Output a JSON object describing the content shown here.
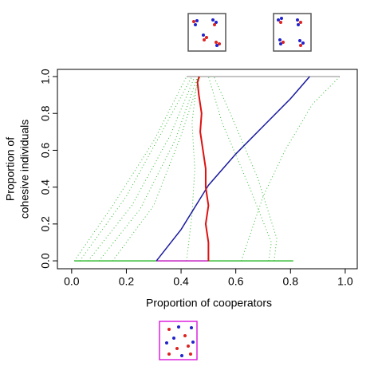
{
  "chart_data": {
    "type": "line",
    "xlabel": "Proportion of cooperators",
    "ylabel": [
      "Proportion of",
      "cohesive individuals"
    ],
    "xlim": [
      -0.052,
      1.044
    ],
    "ylim": [
      -0.043,
      1.039
    ],
    "xticks": [
      {
        "value": 0,
        "label": "0.0"
      },
      0.2,
      0.4,
      0.6,
      0.8,
      {
        "value": 1,
        "label": "1.0"
      }
    ],
    "yticks": [
      {
        "value": 0,
        "label": "0.0"
      },
      0.2,
      0.4,
      0.6,
      0.8,
      {
        "value": 1,
        "label": "1.0"
      }
    ],
    "series": [
      {
        "color": "#33bb33",
        "linestyle": "dotted",
        "x": [
          0.01,
          0.15,
          0.3,
          0.42
        ],
        "values": [
          0,
          0.3,
          0.65,
          1
        ]
      },
      {
        "color": "#33bb33",
        "linestyle": "dotted",
        "x": [
          0.03,
          0.2,
          0.33,
          0.44
        ],
        "values": [
          0,
          0.35,
          0.7,
          1
        ]
      },
      {
        "color": "#33bb33",
        "linestyle": "dotted",
        "x": [
          0.06,
          0.22,
          0.36,
          0.45
        ],
        "values": [
          0,
          0.3,
          0.68,
          1
        ]
      },
      {
        "color": "#33bb33",
        "linestyle": "dotted",
        "x": [
          0.1,
          0.25,
          0.38,
          0.46
        ],
        "values": [
          0,
          0.28,
          0.66,
          1
        ]
      },
      {
        "color": "#33bb33",
        "linestyle": "dotted",
        "x": [
          0.15,
          0.3,
          0.4,
          0.47
        ],
        "values": [
          0,
          0.3,
          0.68,
          1
        ]
      },
      {
        "color": "#33bb33",
        "linestyle": "dotted",
        "x": [
          0.42,
          0.44,
          0.45,
          0.44,
          0.46
        ],
        "values": [
          0,
          0.25,
          0.5,
          0.75,
          1
        ]
      },
      {
        "color": "#33bb33",
        "linestyle": "dotted",
        "x": [
          0.72,
          0.73,
          0.65,
          0.55,
          0.5
        ],
        "values": [
          0,
          0.1,
          0.4,
          0.75,
          1
        ]
      },
      {
        "color": "#33bb33",
        "linestyle": "dotted",
        "x": [
          0.74,
          0.75,
          0.68,
          0.58,
          0.52
        ],
        "values": [
          0,
          0.12,
          0.45,
          0.8,
          1
        ]
      },
      {
        "color": "#33bb33",
        "linestyle": "dotted",
        "x": [
          0.62,
          0.7,
          0.78,
          0.88,
          0.98
        ],
        "values": [
          0,
          0.35,
          0.6,
          0.85,
          1
        ]
      },
      {
        "color": "#33bb33",
        "linestyle": "solid",
        "x": [
          0.01,
          0.81
        ],
        "values": [
          0,
          0
        ]
      },
      {
        "color": "#b0b0b0",
        "linestyle": "solid",
        "x": [
          0.42,
          0.98
        ],
        "values": [
          1,
          1
        ]
      },
      {
        "color": "#dd22dd",
        "linestyle": "solid",
        "x": [
          0.31,
          0.5
        ],
        "values": [
          0,
          0
        ]
      },
      {
        "color": "#1a1aa0",
        "linestyle": "solid",
        "x": [
          0.31,
          0.4,
          0.5,
          0.6,
          0.7,
          0.8,
          0.87
        ],
        "values": [
          0,
          0.17,
          0.41,
          0.58,
          0.73,
          0.88,
          1
        ]
      },
      {
        "color": "#dd1111",
        "linestyle": "solid",
        "x": [
          0.5,
          0.5,
          0.49,
          0.5,
          0.49,
          0.49,
          0.48,
          0.47,
          0.475,
          0.465,
          0.46,
          0.466
        ],
        "values": [
          0,
          0.1,
          0.2,
          0.3,
          0.4,
          0.5,
          0.6,
          0.7,
          0.8,
          0.9,
          0.97,
          1
        ]
      }
    ]
  }
}
